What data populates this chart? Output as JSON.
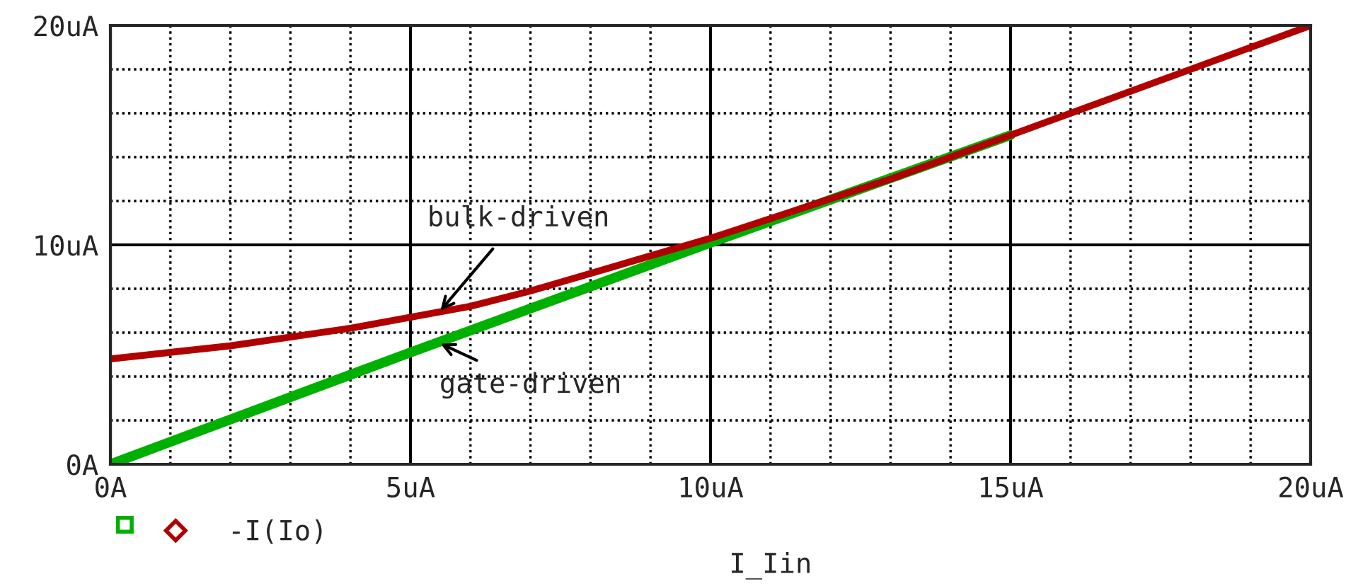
{
  "chart_data": {
    "type": "line",
    "xlabel": "I_Iin",
    "xlim": [
      0,
      20
    ],
    "ylim": [
      0,
      20
    ],
    "xticks": [
      {
        "value": 0,
        "label": "0A"
      },
      {
        "value": 1,
        "label": null
      },
      {
        "value": 2,
        "label": null
      },
      {
        "value": 3,
        "label": null
      },
      {
        "value": 4,
        "label": null
      },
      {
        "value": 5,
        "label": "5uA"
      },
      {
        "value": 6,
        "label": null
      },
      {
        "value": 7,
        "label": null
      },
      {
        "value": 8,
        "label": null
      },
      {
        "value": 9,
        "label": null
      },
      {
        "value": 10,
        "label": "10uA"
      },
      {
        "value": 11,
        "label": null
      },
      {
        "value": 12,
        "label": null
      },
      {
        "value": 13,
        "label": null
      },
      {
        "value": 14,
        "label": null
      },
      {
        "value": 15,
        "label": "15uA"
      },
      {
        "value": 16,
        "label": null
      },
      {
        "value": 17,
        "label": null
      },
      {
        "value": 18,
        "label": null
      },
      {
        "value": 19,
        "label": null
      },
      {
        "value": 20,
        "label": "20uA"
      }
    ],
    "yticks": [
      {
        "value": 0,
        "label": "0A"
      },
      {
        "value": 2,
        "label": null
      },
      {
        "value": 4,
        "label": null
      },
      {
        "value": 6,
        "label": null
      },
      {
        "value": 8,
        "label": null
      },
      {
        "value": 10,
        "label": "10uA"
      },
      {
        "value": 12,
        "label": null
      },
      {
        "value": 14,
        "label": null
      },
      {
        "value": 16,
        "label": null
      },
      {
        "value": 18,
        "label": null
      },
      {
        "value": 20,
        "label": "20uA"
      }
    ],
    "grid": true,
    "legend": "bottom left",
    "marker": "none",
    "line_style": "solid",
    "series": [
      {
        "color": "#00b000",
        "x": [
          0,
          5,
          10,
          15
        ],
        "values": [
          0,
          5.1,
          10.1,
          15.0
        ]
      },
      {
        "name": "-I(Io)",
        "color": "#b00000",
        "x": [
          0,
          1,
          2,
          3,
          4,
          5,
          6,
          7,
          8,
          9,
          10,
          11,
          12,
          13,
          14,
          15,
          16,
          17,
          18,
          19,
          20
        ],
        "values": [
          4.8,
          5.1,
          5.4,
          5.8,
          6.2,
          6.7,
          7.2,
          7.9,
          8.7,
          9.5,
          10.3,
          11.2,
          12.1,
          13.0,
          14.0,
          15.0,
          16.0,
          17.0,
          18.0,
          19.0,
          20.0
        ]
      }
    ],
    "annotations": [
      {
        "text": "bulk-driven",
        "x": 5.5,
        "y": 7.0
      },
      {
        "text": "gate-driven",
        "x": 5.5,
        "y": 5.5
      }
    ]
  }
}
